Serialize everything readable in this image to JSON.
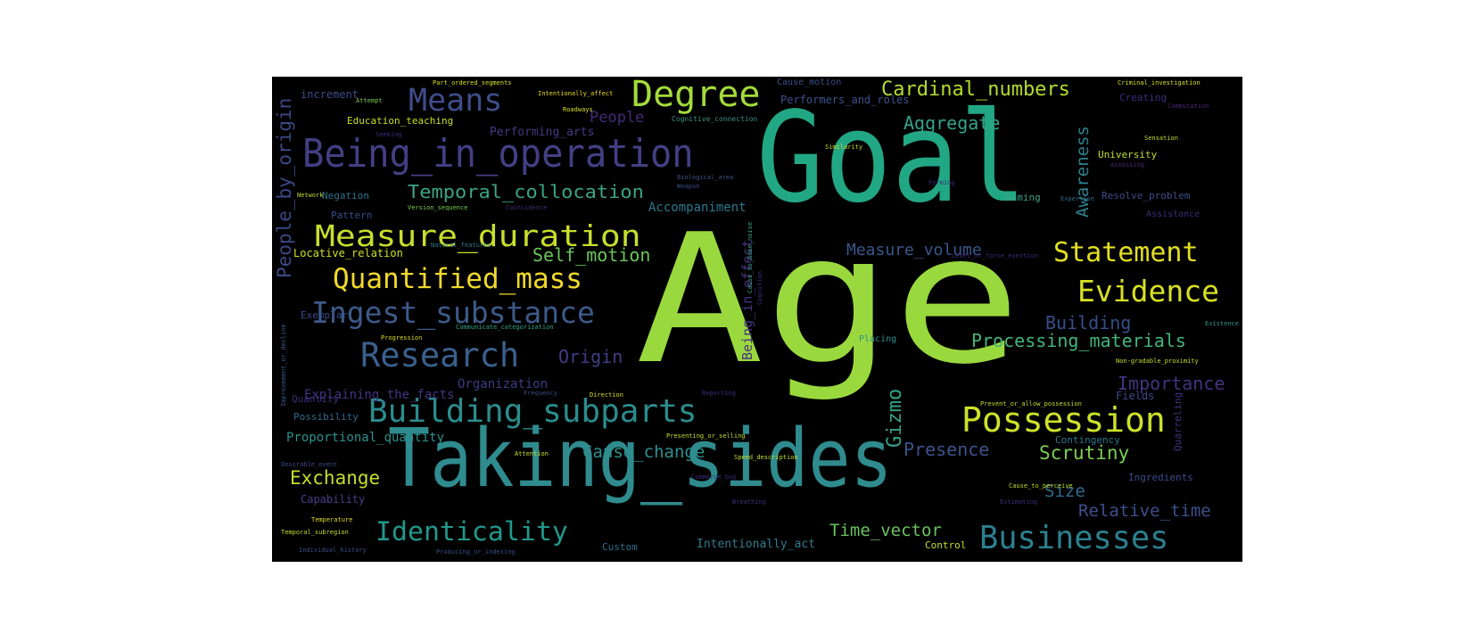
{
  "words": [
    {
      "text": "Age",
      "color": "#9ad93e"
    },
    {
      "text": "Goal",
      "color": "#22a784"
    },
    {
      "text": "Taking_sides",
      "color": "#2f8b8e"
    },
    {
      "text": "Being_in_operation",
      "color": "#433f84"
    },
    {
      "text": "Building_subparts",
      "color": "#2b8c8d"
    },
    {
      "text": "Measure_duration",
      "color": "#c8de2c"
    },
    {
      "text": "Quantified_mass",
      "color": "#f0d92a"
    },
    {
      "text": "Ingest_substance",
      "color": "#3d5a8a"
    },
    {
      "text": "Research",
      "color": "#3a608c"
    },
    {
      "text": "Degree",
      "color": "#a3db3a"
    },
    {
      "text": "Means",
      "color": "#3f4d8a"
    },
    {
      "text": "Possession",
      "color": "#cce12a"
    },
    {
      "text": "Businesses",
      "color": "#2c7f8e"
    },
    {
      "text": "Identicality",
      "color": "#22988b"
    },
    {
      "text": "Statement",
      "color": "#e2df22"
    },
    {
      "text": "Evidence",
      "color": "#d8e023"
    },
    {
      "text": "Cardinal_numbers",
      "color": "#b3dc2f"
    },
    {
      "text": "Temporal_collocation",
      "color": "#3ba585"
    },
    {
      "text": "Aggregate",
      "color": "#34a287"
    },
    {
      "text": "People_by_origin",
      "color": "#3c4886"
    },
    {
      "text": "Processing_materials",
      "color": "#45b47a"
    },
    {
      "text": "Gizmo",
      "color": "#34a088"
    },
    {
      "text": "Scrutiny",
      "color": "#7dcf52"
    },
    {
      "text": "Exchange",
      "color": "#c6de2b"
    },
    {
      "text": "Presence",
      "color": "#3b538a"
    },
    {
      "text": "Cause_change",
      "color": "#2f8f8c"
    },
    {
      "text": "Self_motion",
      "color": "#6cc45b"
    },
    {
      "text": "Origin",
      "color": "#443b84"
    },
    {
      "text": "Building",
      "color": "#354e8b"
    },
    {
      "text": "Importance",
      "color": "#44327f"
    },
    {
      "text": "Awareness",
      "color": "#2d818e"
    },
    {
      "text": "Measure_volume",
      "color": "#38578b"
    },
    {
      "text": "Relative_time",
      "color": "#3c4f8a"
    },
    {
      "text": "Time_vector",
      "color": "#69c25e"
    },
    {
      "text": "Size",
      "color": "#2f6c8e"
    },
    {
      "text": "People",
      "color": "#452b7a"
    },
    {
      "text": "Proportional_quantity",
      "color": "#2a918c"
    },
    {
      "text": "Organization",
      "color": "#3e3b85"
    },
    {
      "text": "Explaining_the_facts",
      "color": "#433482"
    },
    {
      "text": "Accompaniment",
      "color": "#2a778e"
    },
    {
      "text": "Being_in_effect",
      "color": "#46327e"
    },
    {
      "text": "Intentionally_act",
      "color": "#317c8e"
    },
    {
      "text": "Performing_arts",
      "color": "#443a83"
    },
    {
      "text": "Performers_and_roles",
      "color": "#3b528b"
    },
    {
      "text": "Locative_relation",
      "color": "#cde11d"
    },
    {
      "text": "Education_teaching",
      "color": "#c9df2a"
    },
    {
      "text": "increment",
      "color": "#3d4c89"
    },
    {
      "text": "Negation",
      "color": "#2e728e"
    },
    {
      "text": "Pattern",
      "color": "#3a4e8a"
    },
    {
      "text": "Exemplar",
      "color": "#3c4b89"
    },
    {
      "text": "Possibility",
      "color": "#31688e"
    },
    {
      "text": "Quantity",
      "color": "#3b2d7c"
    },
    {
      "text": "Capability",
      "color": "#4a3e85"
    },
    {
      "text": "Custom",
      "color": "#2c6f8e"
    },
    {
      "text": "Contingency",
      "color": "#2a788e"
    },
    {
      "text": "Ingredients",
      "color": "#3b4c8a"
    },
    {
      "text": "Quarreling",
      "color": "#44317f"
    },
    {
      "text": "Fields",
      "color": "#3d4a89"
    },
    {
      "text": "Aiming",
      "color": "#3ca186"
    },
    {
      "text": "University",
      "color": "#c0dd2b"
    },
    {
      "text": "Resolve_problem",
      "color": "#3e4c8a"
    },
    {
      "text": "Assistance",
      "color": "#402a7c"
    },
    {
      "text": "Creating",
      "color": "#3b2f7e"
    },
    {
      "text": "Control",
      "color": "#c3de2c"
    },
    {
      "text": "Placing",
      "color": "#2f8f8c"
    },
    {
      "text": "Cause_motion",
      "color": "#3b4f8a"
    },
    {
      "text": "Cognitive_connection",
      "color": "#3e8f8a"
    },
    {
      "text": "Intentionally_affect",
      "color": "#f0dc22"
    },
    {
      "text": "Part_ordered_segments",
      "color": "#d8e022"
    },
    {
      "text": "Criminal_investigation",
      "color": "#d9e021"
    },
    {
      "text": "Attempt",
      "color": "#7dce52"
    },
    {
      "text": "Roadways",
      "color": "#dfe025"
    },
    {
      "text": "Seeking",
      "color": "#3b2e7c"
    },
    {
      "text": "Commutation",
      "color": "#482576"
    },
    {
      "text": "Similarity",
      "color": "#c7de2b"
    },
    {
      "text": "Biological_area",
      "color": "#3d5089"
    },
    {
      "text": "Weapon",
      "color": "#3b4f8a"
    },
    {
      "text": "Sensation",
      "color": "#c3dd2b"
    },
    {
      "text": "Assessing",
      "color": "#48287a"
    },
    {
      "text": "Forming",
      "color": "#3b2d7c"
    },
    {
      "text": "Network",
      "color": "#c5de2b"
    },
    {
      "text": "Version_sequence",
      "color": "#7ecf50"
    },
    {
      "text": "Coincidence",
      "color": "#462a7a"
    },
    {
      "text": "Expertise",
      "color": "#31688e"
    },
    {
      "text": "Level_of_force_exertion",
      "color": "#3f2c7d"
    },
    {
      "text": "Natural_features",
      "color": "#2f7d8e"
    },
    {
      "text": "Cause_to_make_noise",
      "color": "#3ca186"
    },
    {
      "text": "Cognition",
      "color": "#3b2f7e"
    },
    {
      "text": "Improvement_or_decline",
      "color": "#3a5c8c"
    },
    {
      "text": "Progression",
      "color": "#d6df23"
    },
    {
      "text": "Communicate_categorization",
      "color": "#35a686"
    },
    {
      "text": "Non-gradable_proximity",
      "color": "#c6df2b"
    },
    {
      "text": "Existence",
      "color": "#2e9c8a"
    },
    {
      "text": "Frequency",
      "color": "#3f4c88"
    },
    {
      "text": "Direction",
      "color": "#d3df22"
    },
    {
      "text": "Reporting",
      "color": "#3b2f7e"
    },
    {
      "text": "Prevent_or_allow_possession",
      "color": "#c4de2b"
    },
    {
      "text": "Attention",
      "color": "#cde02a"
    },
    {
      "text": "Speed_description",
      "color": "#c8df2c"
    },
    {
      "text": "Desirable_event",
      "color": "#3d4c89"
    },
    {
      "text": "Commerce_buy",
      "color": "#3b2e7c"
    },
    {
      "text": "Cause_to_perceive",
      "color": "#c5de2b"
    },
    {
      "text": "Temperature",
      "color": "#e4df1f"
    },
    {
      "text": "Temporal_subregion",
      "color": "#c4de2b"
    },
    {
      "text": "Individual_history",
      "color": "#3b4f8a"
    },
    {
      "text": "Breathing",
      "color": "#3b2f7e"
    },
    {
      "text": "Presenting_or_selling",
      "color": "#c7df2b"
    },
    {
      "text": "Producing_or_indexing",
      "color": "#3b4f8a"
    },
    {
      "text": "Estimating",
      "color": "#3b2f7e"
    }
  ]
}
